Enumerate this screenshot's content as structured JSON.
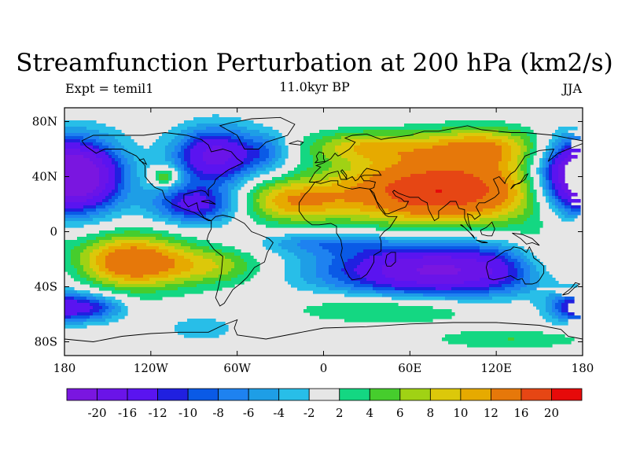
{
  "header": {
    "title": "Streamfunction Perturbation at 200 hPa (km2/s)",
    "subtitle": "11.0kyr BP",
    "left_label": "Expt = temil1",
    "right_label": "JJA"
  },
  "map": {
    "projection": "cylindrical equidistant",
    "lon_range": [
      -180,
      180
    ],
    "lat_range": [
      -90,
      90
    ],
    "lon_ticks": [
      {
        "value": -180,
        "label": "180"
      },
      {
        "value": -120,
        "label": "120W"
      },
      {
        "value": -60,
        "label": "60W"
      },
      {
        "value": 0,
        "label": "0"
      },
      {
        "value": 60,
        "label": "60E"
      },
      {
        "value": 120,
        "label": "120E"
      },
      {
        "value": 180,
        "label": "180"
      }
    ],
    "lat_ticks": [
      {
        "value": 80,
        "label": "80N"
      },
      {
        "value": 40,
        "label": "40N"
      },
      {
        "value": 0,
        "label": "0"
      },
      {
        "value": -40,
        "label": "40S"
      },
      {
        "value": -80,
        "label": "80S"
      }
    ],
    "background_color": "#e6e6e6",
    "fields": [
      {
        "lon": -165,
        "lat": 40,
        "sx": 20,
        "sy": 18,
        "amp": -20
      },
      {
        "lon": 172,
        "lat": 40,
        "sx": 18,
        "sy": 18,
        "amp": -18
      },
      {
        "lon": -75,
        "lat": 55,
        "sx": 20,
        "sy": 14,
        "amp": -18
      },
      {
        "lon": -88,
        "lat": 20,
        "sx": 22,
        "sy": 10,
        "amp": -14
      },
      {
        "lon": -38,
        "lat": 58,
        "sx": 12,
        "sy": 10,
        "amp": -6
      },
      {
        "lon": -110,
        "lat": 40,
        "sx": 7,
        "sy": 5,
        "amp": 9
      },
      {
        "lon": -25,
        "lat": 22,
        "sx": 28,
        "sy": 11,
        "amp": 10
      },
      {
        "lon": 80,
        "lat": 30,
        "sx": 52,
        "sy": 18,
        "amp": 20
      },
      {
        "lon": 30,
        "lat": 62,
        "sx": 30,
        "sy": 8,
        "amp": 8
      },
      {
        "lon": 110,
        "lat": 62,
        "sx": 30,
        "sy": 10,
        "amp": 10
      },
      {
        "lon": -135,
        "lat": -22,
        "sx": 28,
        "sy": 14,
        "amp": 16
      },
      {
        "lon": -75,
        "lat": -25,
        "sx": 26,
        "sy": 10,
        "amp": 7
      },
      {
        "lon": -160,
        "lat": -55,
        "sx": 15,
        "sy": 7,
        "amp": -10
      },
      {
        "lon": 80,
        "lat": -28,
        "sx": 55,
        "sy": 14,
        "amp": -21
      },
      {
        "lon": 0,
        "lat": -8,
        "sx": 32,
        "sy": 6,
        "amp": -6
      },
      {
        "lon": 155,
        "lat": -22,
        "sx": 18,
        "sy": 15,
        "amp": 6
      },
      {
        "lon": 175,
        "lat": -55,
        "sx": 14,
        "sy": 8,
        "amp": -12
      },
      {
        "lon": 50,
        "lat": -55,
        "sx": 50,
        "sy": 8,
        "amp": 6
      },
      {
        "lon": -85,
        "lat": -70,
        "sx": 22,
        "sy": 8,
        "amp": -3
      },
      {
        "lon": 130,
        "lat": -78,
        "sx": 40,
        "sy": 5,
        "amp": 4
      }
    ]
  },
  "colorbar": {
    "colors": [
      "#7a16e0",
      "#6a14e8",
      "#5a14f0",
      "#2020e0",
      "#0a5ae6",
      "#1e82f0",
      "#1e9ee6",
      "#28bee8",
      "#e6e6e6",
      "#14d782",
      "#46cd2d",
      "#a0d214",
      "#dcc80a",
      "#e6aa00",
      "#e6780a",
      "#e64614",
      "#e60a0a"
    ],
    "labels": [
      "-20",
      "-16",
      "-12",
      "-10",
      "-8",
      "-6",
      "-4",
      "-2",
      "2",
      "4",
      "6",
      "8",
      "10",
      "12",
      "16",
      "20"
    ],
    "levels": [
      -20,
      -16,
      -12,
      -10,
      -8,
      -6,
      -4,
      -2,
      2,
      4,
      6,
      8,
      10,
      12,
      16,
      20
    ]
  }
}
